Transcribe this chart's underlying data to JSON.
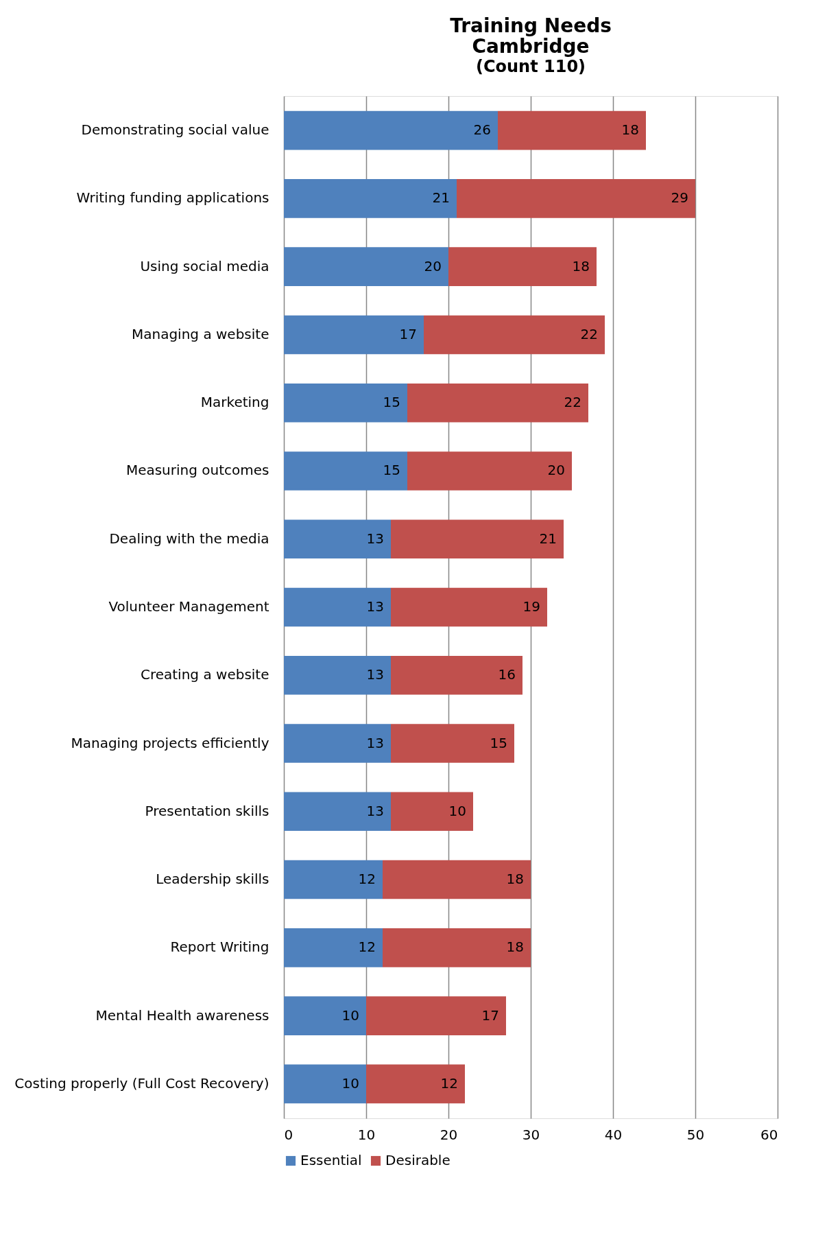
{
  "chart_data": {
    "type": "bar",
    "orientation": "horizontal",
    "stacked": true,
    "title": [
      "Training Needs",
      "Cambridge"
    ],
    "subtitle": "(Count 110)",
    "categories": [
      "Demonstrating social value",
      "Writing funding applications",
      "Using social media",
      "Managing a website",
      "Marketing",
      "Measuring outcomes",
      "Dealing with the media",
      "Volunteer Management",
      "Creating a website",
      "Managing projects efficiently",
      "Presentation skills",
      "Leadership skills",
      "Report Writing",
      "Mental Health awareness",
      "Costing properly (Full Cost Recovery)"
    ],
    "series": [
      {
        "name": "Essential",
        "color": "#4f81bd",
        "values": [
          26,
          21,
          20,
          17,
          15,
          15,
          13,
          13,
          13,
          13,
          13,
          12,
          12,
          10,
          10
        ]
      },
      {
        "name": "Desirable",
        "color": "#c0504d",
        "values": [
          18,
          29,
          18,
          22,
          22,
          20,
          21,
          19,
          16,
          15,
          10,
          18,
          18,
          17,
          12
        ]
      }
    ],
    "xlim": [
      0,
      60
    ],
    "xticks": [
      0,
      10,
      20,
      30,
      40,
      50,
      60
    ],
    "grid": "x",
    "legend": "bottom",
    "data_labels": true
  }
}
